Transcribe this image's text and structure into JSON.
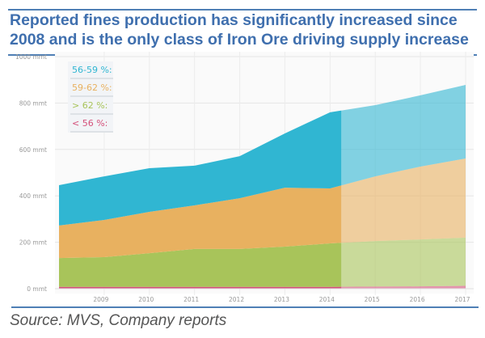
{
  "chart_data": {
    "type": "area",
    "stacked": true,
    "title": "Reported fines production has significantly increased since 2008 and is the only class of Iron Ore driving supply increase",
    "source": "Source: MVS, Company reports",
    "x": [
      2008,
      2009,
      2010,
      2011,
      2012,
      2013,
      2014,
      2015,
      2016,
      2017
    ],
    "x_tick_labels": [
      "2009",
      "2010",
      "2011",
      "2012",
      "2013",
      "2014",
      "2015",
      "2016",
      "2017"
    ],
    "y_tick_labels": [
      "0 mmt",
      "200 mmt",
      "400 mmt",
      "600 mmt",
      "800 mmt",
      "1000 mmt"
    ],
    "ylim": [
      0,
      1000
    ],
    "grid": true,
    "legend_placement": "top-left",
    "projection_shading_from": 2014.25,
    "series": [
      {
        "name": "< 56 %:",
        "color": "#d4507a",
        "values": [
          8,
          8,
          8,
          8,
          8,
          8,
          8,
          9,
          10,
          12
        ]
      },
      {
        "name": "> 62 %:",
        "color": "#a8c45a",
        "values": [
          124,
          128,
          145,
          163,
          163,
          173,
          187,
          196,
          202,
          208
        ]
      },
      {
        "name": "59-62 %:",
        "color": "#e8b160",
        "values": [
          140,
          160,
          178,
          188,
          219,
          254,
          237,
          279,
          314,
          341
        ]
      },
      {
        "name": "56-59 %:",
        "color": "#30b6d2",
        "values": [
          174,
          188,
          188,
          171,
          181,
          234,
          328,
          307,
          307,
          317
        ]
      }
    ],
    "legend_order": [
      3,
      2,
      1,
      0
    ]
  }
}
